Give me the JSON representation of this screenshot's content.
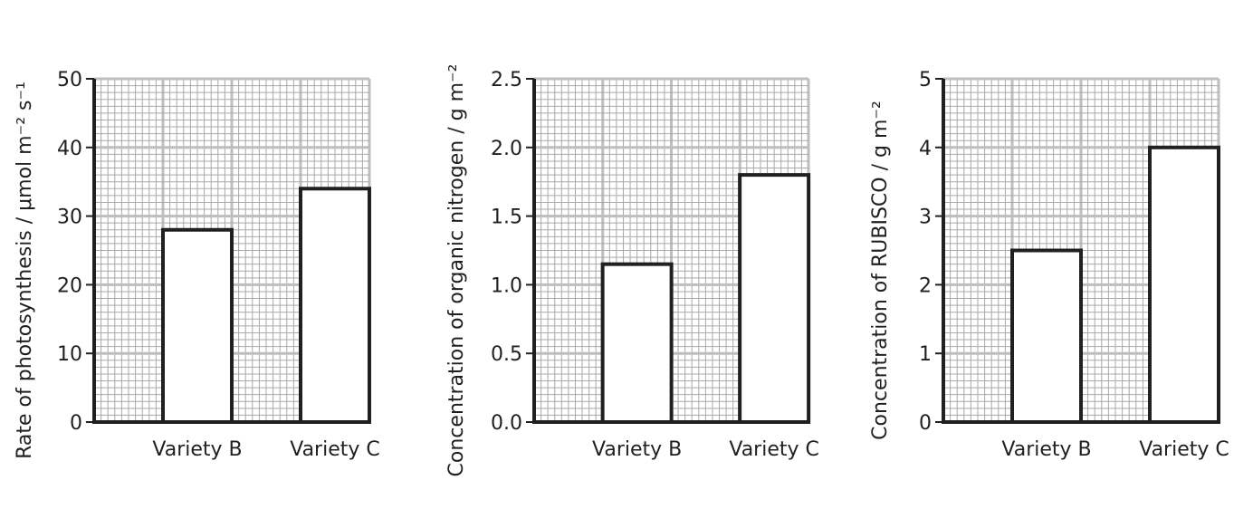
{
  "chart_data": [
    {
      "type": "bar",
      "categories": [
        "Variety B",
        "Variety C"
      ],
      "values": [
        28,
        34
      ],
      "ylabel": "Rate of photosynthesis / μmol m⁻² s⁻¹",
      "ylim": [
        0,
        50
      ],
      "yticks": [
        "0",
        "10",
        "20",
        "30",
        "40",
        "50"
      ],
      "grid": true
    },
    {
      "type": "bar",
      "categories": [
        "Variety B",
        "Variety C"
      ],
      "values": [
        1.15,
        1.8
      ],
      "ylabel": "Concentration of organic nitrogen / g m⁻²",
      "ylim": [
        0,
        2.5
      ],
      "yticks": [
        "0.0",
        "0.5",
        "1.0",
        "1.5",
        "2.0",
        "2.5"
      ],
      "grid": true
    },
    {
      "type": "bar",
      "categories": [
        "Variety B",
        "Variety C"
      ],
      "values": [
        2.5,
        4
      ],
      "ylabel": "Concentration of RUBISCO / g m⁻²",
      "ylim": [
        0,
        5
      ],
      "yticks": [
        "0",
        "1",
        "2",
        "3",
        "4",
        "5"
      ],
      "grid": true
    }
  ],
  "colors": {
    "grid_minor": "#a7a9ac",
    "grid_major": "#bcbec0",
    "axis": "#231f20",
    "bar_edge": "#231f20"
  }
}
